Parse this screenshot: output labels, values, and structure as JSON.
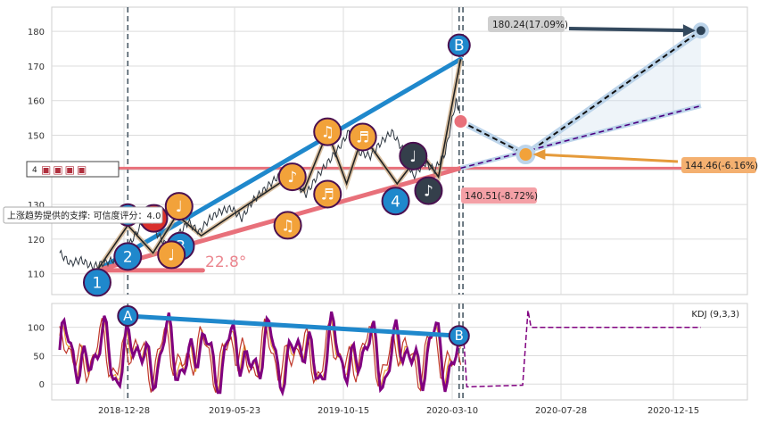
{
  "chart_data": {
    "type": "line",
    "x_ticks": [
      "2018-12-28",
      "2019-05-23",
      "2019-10-15",
      "2020-03-10",
      "2020-07-28",
      "2020-12-15"
    ],
    "price_panel": {
      "ylim": [
        104,
        187
      ],
      "yticks": [
        110,
        120,
        130,
        140,
        150,
        160,
        170,
        180
      ],
      "series": {
        "dates": [
          "2018-10-05",
          "2018-10-19",
          "2018-11-02",
          "2018-11-16",
          "2018-11-30",
          "2018-12-14",
          "2018-12-28",
          "2019-01-11",
          "2019-01-25",
          "2019-02-08",
          "2019-02-22",
          "2019-03-08",
          "2019-03-22",
          "2019-04-05",
          "2019-04-19",
          "2019-05-03",
          "2019-05-17",
          "2019-05-31",
          "2019-06-14",
          "2019-06-28",
          "2019-07-12",
          "2019-07-26",
          "2019-08-09",
          "2019-08-23",
          "2019-09-06",
          "2019-09-20",
          "2019-10-04",
          "2019-10-18",
          "2019-11-01",
          "2019-11-15",
          "2019-11-29",
          "2019-12-13",
          "2019-12-27",
          "2020-01-10",
          "2020-01-24",
          "2020-02-07",
          "2020-02-21",
          "2020-03-06",
          "2020-03-13"
        ],
        "values": [
          116,
          113,
          114,
          112,
          113,
          114,
          116,
          121,
          126,
          122,
          118,
          121,
          125,
          122,
          126,
          128,
          129,
          126,
          131,
          134,
          137,
          140,
          136,
          133,
          138,
          142,
          146,
          151,
          145,
          144,
          148,
          151,
          146,
          138,
          142,
          140,
          145,
          160,
          155
        ]
      },
      "trendlines": [
        {
          "from": [
            "2018-11-23",
            111
          ],
          "to": [
            "2020-03-12",
            172
          ],
          "color": "#1f88cc"
        },
        {
          "from": [
            "2018-11-23",
            111
          ],
          "to": [
            "2020-03-12",
            140.5
          ],
          "color": "#e8707a"
        },
        {
          "from": [
            "2018-11-23",
            111
          ],
          "to": [
            "2019-04-10",
            111
          ],
          "color": "#e8707a"
        }
      ],
      "support_level": 140.5,
      "zigzag_points": [
        [
          "2018-11-23",
          111
        ],
        [
          "2019-01-02",
          124
        ],
        [
          "2019-02-04",
          116
        ],
        [
          "2019-03-07",
          127
        ],
        [
          "2019-04-08",
          121
        ],
        [
          "2019-07-25",
          137
        ],
        [
          "2019-08-20",
          134
        ],
        [
          "2019-09-20",
          151
        ],
        [
          "2019-10-15",
          136
        ],
        [
          "2019-11-05",
          150
        ],
        [
          "2019-12-20",
          136
        ],
        [
          "2020-01-20",
          145
        ],
        [
          "2020-02-12",
          138
        ],
        [
          "2020-03-12",
          172
        ]
      ],
      "wave_labels": [
        {
          "label": "1",
          "date": "2018-11-23",
          "value": 107.5
        },
        {
          "label": "2",
          "date": "2019-01-02",
          "value": 115
        },
        {
          "label": "3",
          "date": "2019-03-12",
          "value": 118
        }
      ],
      "point_labels": [
        {
          "label": "A",
          "date": "2019-01-02",
          "value": 127
        },
        {
          "label": "B",
          "date": "2020-03-10",
          "value": 176
        },
        {
          "label": "4",
          "date": "2019-12-18",
          "value": 131
        }
      ],
      "note_markers": [
        {
          "glyph": "♪",
          "date": "2019-02-05",
          "value": 126,
          "color": "#d9302c"
        },
        {
          "glyph": "♩",
          "date": "2019-03-10",
          "value": 129.5,
          "color": "#f2a23a"
        },
        {
          "glyph": "♩",
          "date": "2019-02-28",
          "value": 115.5,
          "color": "#f2a23a"
        },
        {
          "glyph": "♫",
          "date": "2019-07-30",
          "value": 124,
          "color": "#f2a23a"
        },
        {
          "glyph": "♪",
          "date": "2019-08-05",
          "value": 138,
          "color": "#f2a23a"
        },
        {
          "glyph": "♫",
          "date": "2019-09-20",
          "value": 151,
          "color": "#f2a23a"
        },
        {
          "glyph": "♬",
          "date": "2019-09-20",
          "value": 133,
          "color": "#f2a23a"
        },
        {
          "glyph": "♬",
          "date": "2019-11-05",
          "value": 149.5,
          "color": "#f2a23a"
        },
        {
          "glyph": "♩",
          "date": "2020-01-10",
          "value": 144,
          "color": "#343f4b"
        },
        {
          "glyph": "♪",
          "date": "2020-01-30",
          "value": 134,
          "color": "#343f4b"
        }
      ],
      "forecast": {
        "start": [
          "2020-03-12",
          154
        ],
        "mid": [
          "2020-06-05",
          144.46
        ],
        "end_up": [
          "2021-01-20",
          180.24
        ],
        "purple_line": {
          "from": [
            "2020-03-12",
            140.5
          ],
          "to": [
            "2021-01-20",
            158.5
          ]
        }
      },
      "annotations": {
        "target_high": "180.24(17.09%)",
        "target_mid": "144.46(-6.16%)",
        "support_value": "140.51(-8.72%)",
        "support_note": "上涨趋势提供的支撑: 可信度评分：4.0",
        "angle_text": "22.8°",
        "left_tag": "4",
        "legend_box": "▣▣▣▣"
      },
      "vlines": [
        "2019-01-02",
        "2020-03-10",
        "2020-03-15"
      ]
    },
    "kdj_panel": {
      "title": "KDJ (9,3,3)",
      "ylim": [
        -28,
        142
      ],
      "yticks": [
        0,
        50,
        100
      ],
      "trend": {
        "from": [
          "2019-01-02",
          120
        ],
        "to": [
          "2020-03-10",
          85
        ],
        "labels": [
          "A",
          "B"
        ]
      },
      "tail_value": 100
    },
    "colors": {
      "blue": "#1f88cc",
      "red": "#e8707a",
      "orange": "#f2a23a",
      "dark": "#343f4b",
      "purple": "#800080",
      "grid": "#dcdcdc"
    }
  }
}
